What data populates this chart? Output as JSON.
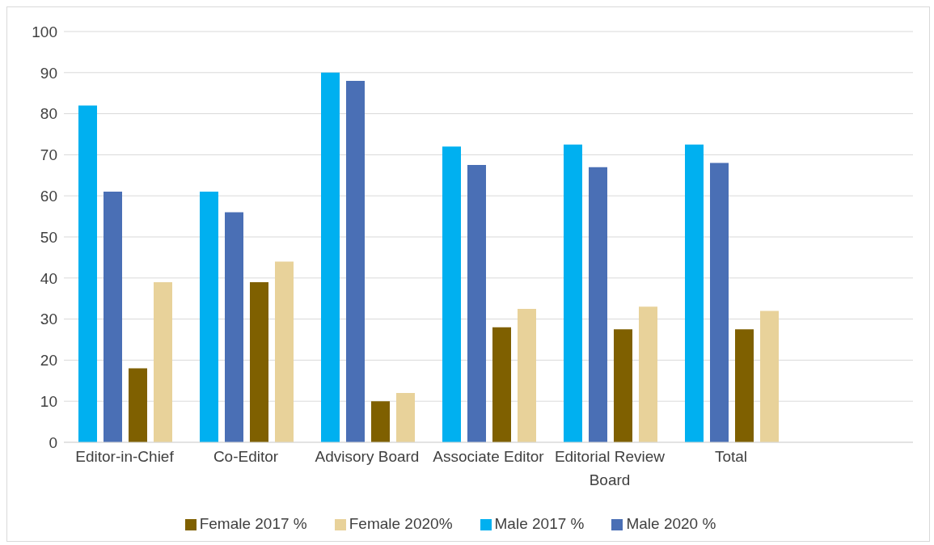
{
  "chart_data": {
    "type": "bar",
    "categories": [
      "Editor-in-Chief",
      "Co-Editor",
      "Advisory Board",
      "Associate Editor",
      "Editorial Review Board",
      "Total",
      null
    ],
    "series": [
      {
        "name": "Male 2017 %",
        "color": "#00b0f0",
        "values": [
          82,
          61,
          90,
          72,
          72.5,
          72.5,
          null
        ]
      },
      {
        "name": "Male 2020 %",
        "color": "#4a6fb5",
        "values": [
          61,
          56,
          88,
          67.5,
          67,
          68,
          null
        ]
      },
      {
        "name": "Female 2017 %",
        "color": "#7f6000",
        "values": [
          18,
          39,
          10,
          28,
          27.5,
          27.5,
          null
        ]
      },
      {
        "name": "Female 2020%",
        "color": "#e8d29a",
        "values": [
          39,
          44,
          12,
          32.5,
          33,
          32,
          null
        ]
      }
    ],
    "ylim": [
      0,
      100
    ],
    "yticks": [
      0,
      10,
      20,
      30,
      40,
      50,
      60,
      70,
      80,
      90,
      100
    ],
    "grid": "y",
    "legend": "bottom"
  }
}
